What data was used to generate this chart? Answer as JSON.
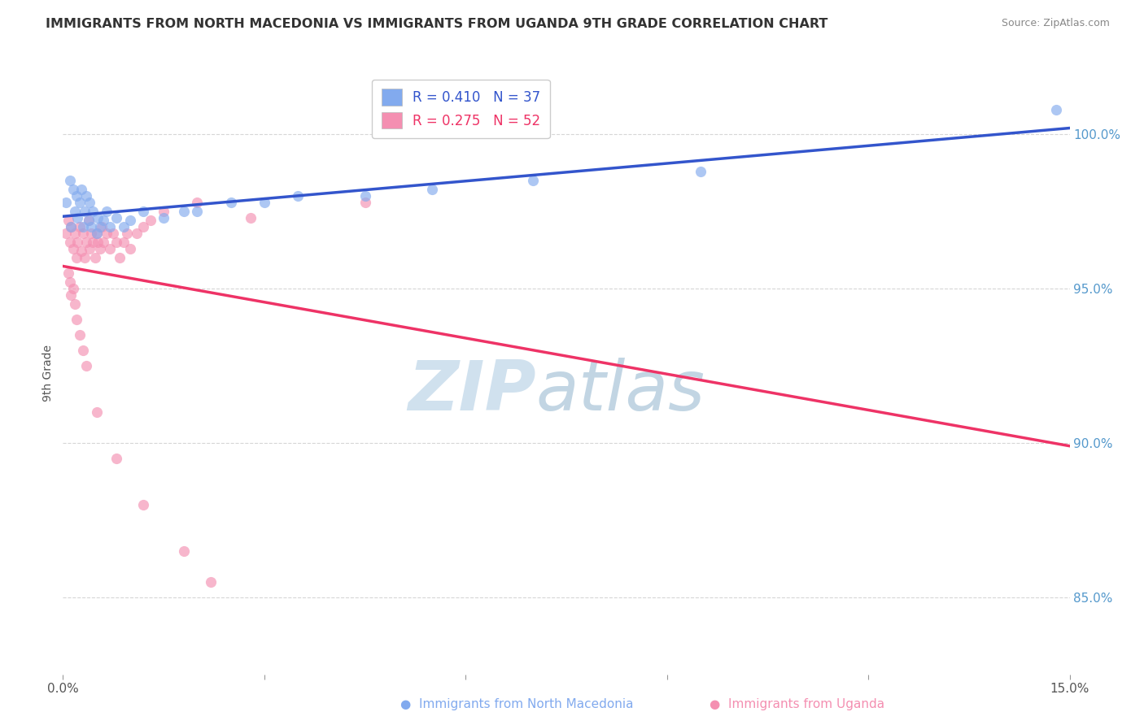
{
  "title": "IMMIGRANTS FROM NORTH MACEDONIA VS IMMIGRANTS FROM UGANDA 9TH GRADE CORRELATION CHART",
  "source": "Source: ZipAtlas.com",
  "ylabel": "9th Grade",
  "xmin": 0.0,
  "xmax": 15.0,
  "ymin": 82.5,
  "ymax": 102.0,
  "legend_blue_r": "R = 0.410",
  "legend_blue_n": "N = 37",
  "legend_pink_r": "R = 0.275",
  "legend_pink_n": "N = 52",
  "blue_color": "#82AAEE",
  "pink_color": "#F48FB1",
  "blue_line_color": "#3355CC",
  "pink_line_color": "#EE3366",
  "north_macedonia_x": [
    0.05,
    0.1,
    0.12,
    0.15,
    0.18,
    0.2,
    0.22,
    0.25,
    0.28,
    0.3,
    0.32,
    0.35,
    0.38,
    0.4,
    0.42,
    0.45,
    0.5,
    0.52,
    0.55,
    0.6,
    0.65,
    0.7,
    0.8,
    0.9,
    1.0,
    1.2,
    1.5,
    1.8,
    2.0,
    2.5,
    3.0,
    3.5,
    4.5,
    5.5,
    7.0,
    9.5,
    14.8
  ],
  "north_macedonia_y": [
    97.8,
    98.5,
    97.0,
    98.2,
    97.5,
    98.0,
    97.3,
    97.8,
    98.2,
    97.0,
    97.5,
    98.0,
    97.2,
    97.8,
    97.0,
    97.5,
    96.8,
    97.3,
    97.0,
    97.2,
    97.5,
    97.0,
    97.3,
    97.0,
    97.2,
    97.5,
    97.3,
    97.5,
    97.5,
    97.8,
    97.8,
    98.0,
    98.0,
    98.2,
    98.5,
    98.8,
    100.8
  ],
  "uganda_x": [
    0.05,
    0.08,
    0.1,
    0.12,
    0.15,
    0.18,
    0.2,
    0.22,
    0.25,
    0.28,
    0.3,
    0.32,
    0.35,
    0.38,
    0.4,
    0.42,
    0.45,
    0.48,
    0.5,
    0.52,
    0.55,
    0.58,
    0.6,
    0.65,
    0.7,
    0.75,
    0.8,
    0.85,
    0.9,
    0.95,
    1.0,
    1.1,
    1.2,
    1.3,
    1.5,
    2.0,
    2.8,
    4.5,
    0.08,
    0.1,
    0.15,
    0.12,
    0.18,
    0.2,
    0.25,
    0.3,
    0.35,
    0.5,
    0.8,
    1.2,
    1.8,
    2.2
  ],
  "uganda_y": [
    96.8,
    97.2,
    96.5,
    97.0,
    96.3,
    96.8,
    96.0,
    96.5,
    97.0,
    96.2,
    96.8,
    96.0,
    96.5,
    97.2,
    96.3,
    96.8,
    96.5,
    96.0,
    96.8,
    96.5,
    96.3,
    97.0,
    96.5,
    96.8,
    96.3,
    96.8,
    96.5,
    96.0,
    96.5,
    96.8,
    96.3,
    96.8,
    97.0,
    97.2,
    97.5,
    97.8,
    97.3,
    97.8,
    95.5,
    95.2,
    95.0,
    94.8,
    94.5,
    94.0,
    93.5,
    93.0,
    92.5,
    91.0,
    89.5,
    88.0,
    86.5,
    85.5
  ],
  "right_yticks": [
    85.0,
    90.0,
    95.0,
    100.0
  ],
  "right_ytick_labels": [
    "85.0%",
    "90.0%",
    "95.0%",
    "100.0%"
  ],
  "ytick_color": "#5599CC",
  "grid_color": "#CCCCCC",
  "watermark_zip_color": "#C8DCEC",
  "watermark_atlas_color": "#A8C4D8",
  "title_color": "#333333",
  "source_color": "#888888"
}
